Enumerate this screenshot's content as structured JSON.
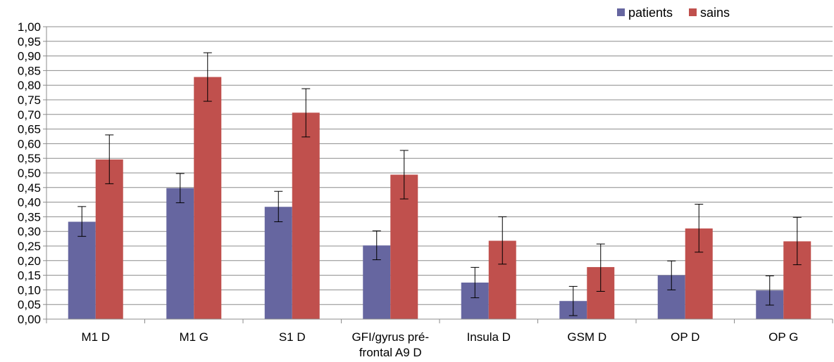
{
  "chart_data": {
    "type": "bar",
    "title": "",
    "xlabel": "",
    "ylabel": "",
    "ylim": [
      0,
      1.0
    ],
    "ytick_step": 0.05,
    "ytick_labels": [
      "0,00",
      "0,05",
      "0,10",
      "0,15",
      "0,20",
      "0,25",
      "0,30",
      "0,35",
      "0,40",
      "0,45",
      "0,50",
      "0,55",
      "0,60",
      "0,65",
      "0,70",
      "0,75",
      "0,80",
      "0,85",
      "0,90",
      "0,95",
      "1,00"
    ],
    "grid": true,
    "legend_position": "top-right",
    "categories": [
      [
        "M1 D"
      ],
      [
        "M1 G"
      ],
      [
        "S1 D"
      ],
      [
        "GFI/gyrus pré-",
        "frontal A9 D"
      ],
      [
        "Insula D"
      ],
      [
        "GSM D"
      ],
      [
        "OP D"
      ],
      [
        "OP G"
      ]
    ],
    "series": [
      {
        "name": "patients",
        "color": "#6666a0",
        "values": [
          0.333,
          0.448,
          0.384,
          0.252,
          0.125,
          0.062,
          0.15,
          0.098
        ],
        "err_low": [
          0.283,
          0.398,
          0.333,
          0.203,
          0.073,
          0.012,
          0.1,
          0.048
        ],
        "err_high": [
          0.385,
          0.498,
          0.437,
          0.302,
          0.177,
          0.112,
          0.199,
          0.148
        ]
      },
      {
        "name": "sains",
        "color": "#c0504d",
        "values": [
          0.546,
          0.828,
          0.706,
          0.494,
          0.268,
          0.178,
          0.31,
          0.266
        ],
        "err_low": [
          0.463,
          0.745,
          0.623,
          0.411,
          0.188,
          0.095,
          0.229,
          0.186
        ],
        "err_high": [
          0.63,
          0.911,
          0.788,
          0.577,
          0.35,
          0.257,
          0.393,
          0.348
        ]
      }
    ]
  }
}
